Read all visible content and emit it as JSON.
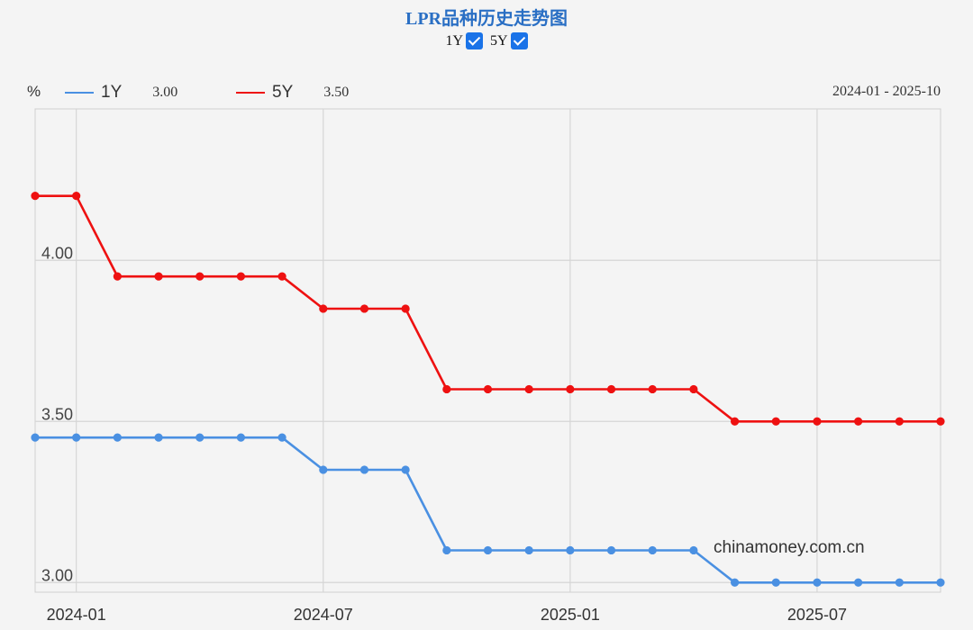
{
  "chart_data": {
    "type": "line",
    "title": "LPR品种历史走势图",
    "ylabel": "%",
    "date_range": "2024-01 - 2025-10",
    "watermark": "chinamoney.com.cn",
    "grid": true,
    "ylim": [
      2.97,
      4.47
    ],
    "xlim": [
      "2023-12",
      "2025-10"
    ],
    "yticks": [
      {
        "value": 3.0,
        "label": "3.00"
      },
      {
        "value": 3.5,
        "label": "3.50"
      },
      {
        "value": 4.0,
        "label": "4.00"
      }
    ],
    "xticks": [
      {
        "x": "2024-01",
        "label": "2024-01"
      },
      {
        "x": "2024-07",
        "label": "2024-07"
      },
      {
        "x": "2025-01",
        "label": "2025-01"
      },
      {
        "x": "2025-07",
        "label": "2025-07"
      }
    ],
    "x": [
      "2023-12",
      "2024-01",
      "2024-02",
      "2024-03",
      "2024-04",
      "2024-05",
      "2024-06",
      "2024-07",
      "2024-08",
      "2024-09",
      "2024-10",
      "2024-11",
      "2024-12",
      "2025-01",
      "2025-02",
      "2025-03",
      "2025-04",
      "2025-05",
      "2025-06",
      "2025-07",
      "2025-08",
      "2025-09",
      "2025-10"
    ],
    "series": [
      {
        "name": "1Y",
        "color": "#4a90e2",
        "current": "3.00",
        "values": [
          3.45,
          3.45,
          3.45,
          3.45,
          3.45,
          3.45,
          3.45,
          3.35,
          3.35,
          3.35,
          3.1,
          3.1,
          3.1,
          3.1,
          3.1,
          3.1,
          3.1,
          3.0,
          3.0,
          3.0,
          3.0,
          3.0,
          3.0
        ]
      },
      {
        "name": "5Y",
        "color": "#ee1111",
        "current": "3.50",
        "values": [
          4.2,
          4.2,
          3.95,
          3.95,
          3.95,
          3.95,
          3.95,
          3.85,
          3.85,
          3.85,
          3.6,
          3.6,
          3.6,
          3.6,
          3.6,
          3.6,
          3.6,
          3.5,
          3.5,
          3.5,
          3.5,
          3.5,
          3.5
        ]
      }
    ]
  },
  "toggles": [
    {
      "label": "1Y",
      "checked": true
    },
    {
      "label": "5Y",
      "checked": true
    }
  ]
}
